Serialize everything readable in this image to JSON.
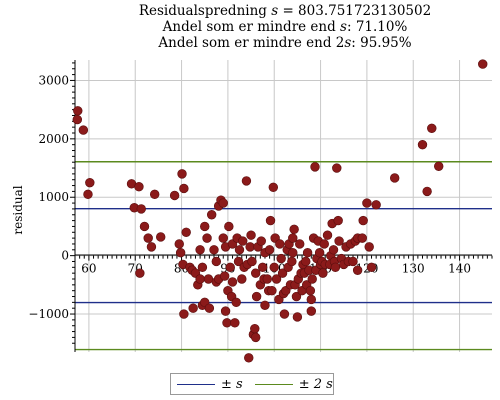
{
  "chart_data": {
    "type": "scatter",
    "title": {
      "line1_text": "Residualspredning ",
      "line1_var": "s",
      "line1_eq": " = 803.751723130502",
      "line2_pre": "Andel som er mindre end ",
      "line2_var": "s",
      "line2_post": ": 71.10%",
      "line3_pre": "Andel som er mindre end 2",
      "line3_var": "s",
      "line3_post": ": 95.95%"
    },
    "ylabel": "residual",
    "xlabel": "",
    "xlim": [
      57,
      147
    ],
    "ylim": [
      -1650,
      3350
    ],
    "x_ticks": [
      60,
      70,
      80,
      90,
      100,
      110,
      120,
      130,
      140
    ],
    "y_ticks": [
      -1000,
      0,
      1000,
      2000,
      3000
    ],
    "y_tick_labels": [
      "−1000",
      "0",
      "1000",
      "2000",
      "3000"
    ],
    "grid": true,
    "point_color": "#8b1a1a",
    "reference_lines": [
      {
        "name": "±s",
        "values": [
          803.75,
          -803.75
        ],
        "color": "#1f2f8a"
      },
      {
        "name": "±2s",
        "values": [
          1607.5,
          -1607.5
        ],
        "color": "#5b8a1e"
      }
    ],
    "legend": {
      "position": "bottom",
      "entries": [
        "± s",
        "± 2 s"
      ]
    },
    "points": [
      [
        57.6,
        2480
      ],
      [
        57.5,
        2330
      ],
      [
        58.8,
        2150
      ],
      [
        60.2,
        1250
      ],
      [
        59.8,
        1050
      ],
      [
        69.2,
        1230
      ],
      [
        70.8,
        1180
      ],
      [
        69.8,
        820
      ],
      [
        71.3,
        800
      ],
      [
        71.0,
        -300
      ],
      [
        72.0,
        500
      ],
      [
        72.8,
        300
      ],
      [
        73.5,
        150
      ],
      [
        74.2,
        1050
      ],
      [
        75.5,
        320
      ],
      [
        78.5,
        1030
      ],
      [
        79.5,
        200
      ],
      [
        80.1,
        1400
      ],
      [
        80.5,
        1150
      ],
      [
        79.8,
        50
      ],
      [
        80.3,
        -150
      ],
      [
        81.0,
        400
      ],
      [
        81.8,
        -200
      ],
      [
        82.3,
        -250
      ],
      [
        83.0,
        -300
      ],
      [
        80.5,
        -1000
      ],
      [
        82.5,
        -900
      ],
      [
        83.5,
        -500
      ],
      [
        84.0,
        -400
      ],
      [
        84.5,
        -200
      ],
      [
        84.0,
        100
      ],
      [
        84.5,
        -850
      ],
      [
        85.0,
        -800
      ],
      [
        85.0,
        500
      ],
      [
        85.5,
        300
      ],
      [
        85.8,
        -400
      ],
      [
        86.0,
        -900
      ],
      [
        86.5,
        700
      ],
      [
        87.0,
        100
      ],
      [
        87.5,
        -450
      ],
      [
        87.5,
        -100
      ],
      [
        88.0,
        -400
      ],
      [
        88.0,
        850
      ],
      [
        88.5,
        950
      ],
      [
        89.0,
        900
      ],
      [
        89.0,
        300
      ],
      [
        89.3,
        -350
      ],
      [
        89.5,
        -950
      ],
      [
        89.8,
        -1150
      ],
      [
        90.0,
        -600
      ],
      [
        89.5,
        150
      ],
      [
        90.2,
        500
      ],
      [
        90.5,
        -200
      ],
      [
        90.8,
        -700
      ],
      [
        91.0,
        200
      ],
      [
        91.0,
        -450
      ],
      [
        91.5,
        -1150
      ],
      [
        91.8,
        -800
      ],
      [
        92.0,
        300
      ],
      [
        92.3,
        -100
      ],
      [
        92.5,
        100
      ],
      [
        93.0,
        -400
      ],
      [
        93.2,
        250
      ],
      [
        93.5,
        -200
      ],
      [
        94.0,
        1280
      ],
      [
        94.2,
        -150
      ],
      [
        94.5,
        -1750
      ],
      [
        94.8,
        150
      ],
      [
        95.0,
        350
      ],
      [
        95.2,
        -100
      ],
      [
        95.5,
        -1350
      ],
      [
        95.8,
        -1250
      ],
      [
        96.0,
        -1400
      ],
      [
        96.0,
        -300
      ],
      [
        96.2,
        -700
      ],
      [
        96.5,
        150
      ],
      [
        97.0,
        -500
      ],
      [
        97.2,
        250
      ],
      [
        97.5,
        -200
      ],
      [
        97.8,
        -400
      ],
      [
        98.0,
        -850
      ],
      [
        98.0,
        50
      ],
      [
        98.5,
        -400
      ],
      [
        98.8,
        -600
      ],
      [
        99.0,
        100
      ],
      [
        99.2,
        600
      ],
      [
        99.5,
        -600
      ],
      [
        99.8,
        1170
      ],
      [
        100.0,
        -200
      ],
      [
        100.2,
        300
      ],
      [
        100.5,
        -400
      ],
      [
        101.0,
        -750
      ],
      [
        101.2,
        200
      ],
      [
        101.5,
        -50
      ],
      [
        101.8,
        -300
      ],
      [
        102.0,
        -650
      ],
      [
        102.2,
        -1000
      ],
      [
        102.5,
        -600
      ],
      [
        102.8,
        100
      ],
      [
        103.0,
        -200
      ],
      [
        103.2,
        200
      ],
      [
        103.5,
        -500
      ],
      [
        103.8,
        -100
      ],
      [
        104.0,
        50
      ],
      [
        104.0,
        300
      ],
      [
        104.3,
        450
      ],
      [
        104.5,
        -500
      ],
      [
        104.8,
        -700
      ],
      [
        105.0,
        -1050
      ],
      [
        105.2,
        -400
      ],
      [
        105.5,
        200
      ],
      [
        105.8,
        -300
      ],
      [
        106.0,
        -600
      ],
      [
        106.2,
        -150
      ],
      [
        106.5,
        -300
      ],
      [
        106.8,
        -100
      ],
      [
        107.0,
        -500
      ],
      [
        107.2,
        50
      ],
      [
        107.5,
        -250
      ],
      [
        107.8,
        -600
      ],
      [
        108.0,
        -950
      ],
      [
        108.0,
        -750
      ],
      [
        108.2,
        -400
      ],
      [
        108.5,
        300
      ],
      [
        108.8,
        1520
      ],
      [
        109.0,
        -250
      ],
      [
        109.2,
        -50
      ],
      [
        109.5,
        250
      ],
      [
        109.8,
        50
      ],
      [
        110.0,
        -150
      ],
      [
        110.3,
        -100
      ],
      [
        110.5,
        -300
      ],
      [
        110.8,
        200
      ],
      [
        111.0,
        -150
      ],
      [
        111.5,
        350
      ],
      [
        112.0,
        -150
      ],
      [
        112.2,
        0
      ],
      [
        112.5,
        550
      ],
      [
        112.8,
        100
      ],
      [
        113.0,
        -100
      ],
      [
        113.2,
        -200
      ],
      [
        113.5,
        1500
      ],
      [
        113.8,
        600
      ],
      [
        114.0,
        250
      ],
      [
        114.5,
        -50
      ],
      [
        115.0,
        -150
      ],
      [
        115.5,
        150
      ],
      [
        116.0,
        -100
      ],
      [
        116.5,
        200
      ],
      [
        117.0,
        -100
      ],
      [
        117.5,
        250
      ],
      [
        118.0,
        300
      ],
      [
        118.0,
        -250
      ],
      [
        119.0,
        300
      ],
      [
        119.2,
        600
      ],
      [
        120.0,
        900
      ],
      [
        120.5,
        150
      ],
      [
        121.0,
        -200
      ],
      [
        122.0,
        870
      ],
      [
        126.0,
        1330
      ],
      [
        132.0,
        1900
      ],
      [
        133.0,
        1100
      ],
      [
        134.0,
        2180
      ],
      [
        135.5,
        1530
      ],
      [
        145.0,
        3280
      ]
    ]
  }
}
